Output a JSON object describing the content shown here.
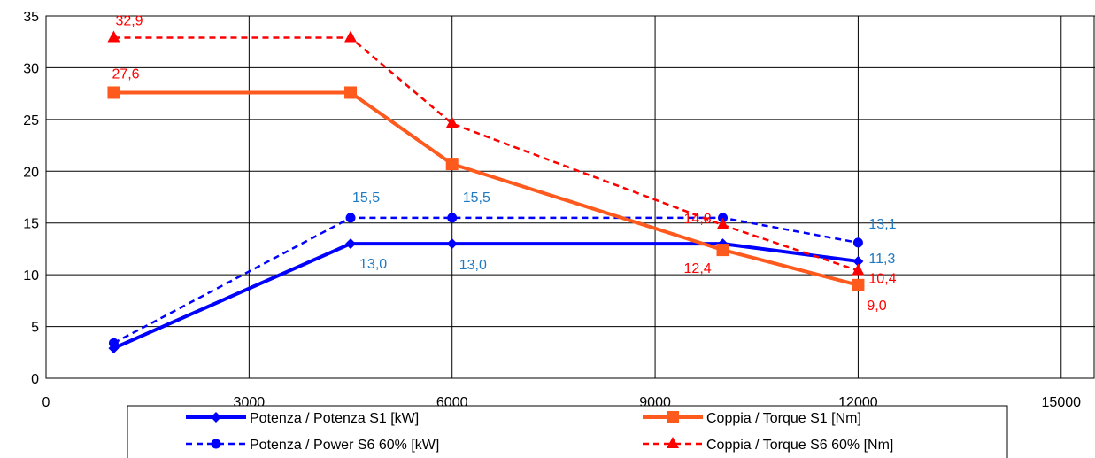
{
  "chart_data": {
    "type": "line",
    "xlim": [
      0,
      15500
    ],
    "ylim": [
      0,
      35
    ],
    "x_ticks": [
      0,
      3000,
      6000,
      9000,
      12000,
      15000
    ],
    "y_ticks": [
      0,
      5,
      10,
      15,
      20,
      25,
      30,
      35
    ],
    "grid": true,
    "legend_position": "bottom",
    "series": [
      {
        "name": "Potenza / Potenza S1 [kW]",
        "color": "#0000ff",
        "line_style": "solid",
        "marker": "diamond",
        "x": [
          1000,
          4500,
          6000,
          10000,
          12000
        ],
        "y": [
          2.9,
          13.0,
          13.0,
          13.0,
          11.3
        ],
        "labels": [
          "",
          "13,0",
          "13,0",
          "",
          "11,3"
        ]
      },
      {
        "name": "Potenza / Power S6 60% [kW]",
        "color": "#0000ff",
        "line_style": "dashed",
        "marker": "circle",
        "x": [
          1000,
          4500,
          6000,
          10000,
          12000
        ],
        "y": [
          3.4,
          15.5,
          15.5,
          15.5,
          13.1
        ],
        "labels": [
          "",
          "15,5",
          "15,5",
          "",
          "13,1"
        ]
      },
      {
        "name": "Coppia / Torque S1 [Nm]",
        "color": "#ff5a1e",
        "line_style": "solid",
        "marker": "square",
        "x": [
          1000,
          4500,
          6000,
          10000,
          12000
        ],
        "y": [
          27.6,
          27.6,
          20.7,
          12.4,
          9.0
        ],
        "labels": [
          "27,6",
          "",
          "",
          "12,4",
          "9,0"
        ]
      },
      {
        "name": "Coppia / Torque S6 60% [Nm]",
        "color": "#ff0000",
        "line_style": "dashed",
        "marker": "triangle",
        "x": [
          1000,
          4500,
          6000,
          10000,
          12000
        ],
        "y": [
          32.9,
          32.9,
          24.6,
          14.8,
          10.4
        ],
        "labels": [
          "32,9",
          "",
          "",
          "14,8",
          "10,4"
        ]
      }
    ]
  },
  "label_colors": {
    "power": "#1f7ac2",
    "torque": "#ff0000"
  }
}
